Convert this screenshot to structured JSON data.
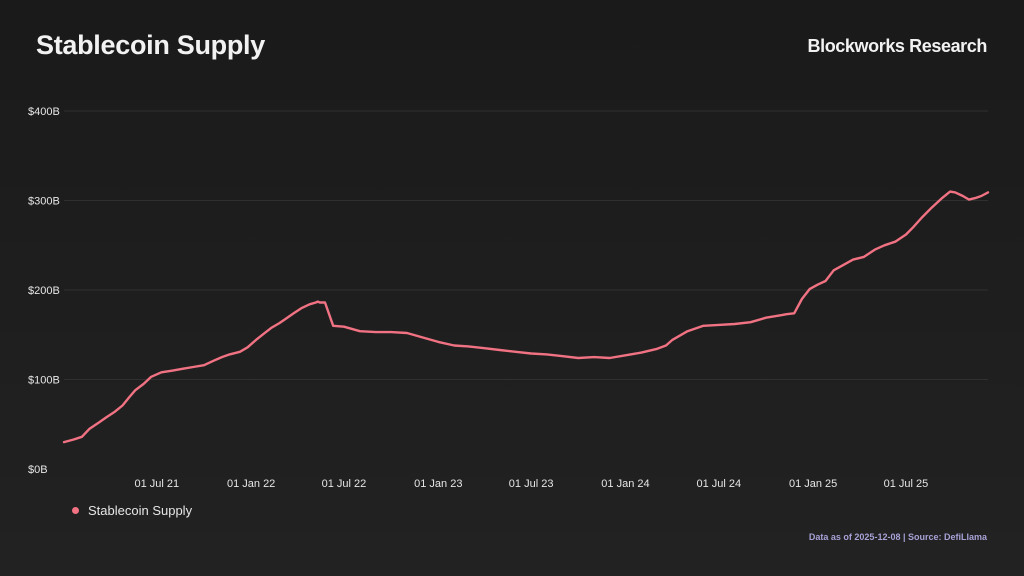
{
  "title": "Stablecoin Supply",
  "brand": "Blockworks Research",
  "source_note": "Data as of 2025-12-08 | Source: DefiLlama",
  "colors": {
    "background": "#1e1e1e",
    "grid": "#303030",
    "axis_text": "#e6e6e6",
    "series": "#f07283",
    "source_text": "#a7a1d6"
  },
  "chart_data": {
    "type": "line",
    "title": "Stablecoin Supply",
    "xlabel": "",
    "ylabel": "",
    "ylim": [
      0,
      400
    ],
    "y_unit": "B USD",
    "y_ticks": [
      0,
      100,
      200,
      300,
      400
    ],
    "y_tick_labels": [
      "$0B",
      "$100B",
      "$200B",
      "$300B",
      "$400B"
    ],
    "xlim": [
      "2021-01-01",
      "2025-12-08"
    ],
    "x_ticks": [
      "2021-07-01",
      "2022-01-01",
      "2022-07-01",
      "2023-01-01",
      "2023-07-01",
      "2024-01-01",
      "2024-07-01",
      "2025-01-01",
      "2025-07-01"
    ],
    "x_tick_labels": [
      "01 Jul 21",
      "01 Jan 22",
      "01 Jul 22",
      "01 Jan 23",
      "01 Jul 23",
      "01 Jan 24",
      "01 Jul 24",
      "01 Jan 25",
      "01 Jul 25"
    ],
    "grid": true,
    "legend_position": "bottom-left",
    "series": [
      {
        "name": "Stablecoin Supply",
        "x": [
          "2021-01-01",
          "2021-01-20",
          "2021-02-05",
          "2021-02-20",
          "2021-03-10",
          "2021-03-25",
          "2021-04-10",
          "2021-04-25",
          "2021-05-08",
          "2021-05-20",
          "2021-06-05",
          "2021-06-20",
          "2021-07-10",
          "2021-08-01",
          "2021-08-20",
          "2021-09-10",
          "2021-10-01",
          "2021-10-20",
          "2021-11-05",
          "2021-11-20",
          "2021-12-10",
          "2021-12-25",
          "2022-01-10",
          "2022-01-25",
          "2022-02-10",
          "2022-02-25",
          "2022-03-10",
          "2022-03-25",
          "2022-04-10",
          "2022-04-25",
          "2022-05-07",
          "2022-05-11",
          "2022-05-15",
          "2022-05-25",
          "2022-06-10",
          "2022-07-01",
          "2022-08-01",
          "2022-09-01",
          "2022-10-01",
          "2022-11-01",
          "2022-12-01",
          "2023-01-01",
          "2023-02-01",
          "2023-03-01",
          "2023-04-01",
          "2023-05-01",
          "2023-06-01",
          "2023-07-01",
          "2023-08-01",
          "2023-09-01",
          "2023-10-01",
          "2023-11-01",
          "2023-12-01",
          "2024-01-01",
          "2024-02-01",
          "2024-03-01",
          "2024-03-20",
          "2024-04-01",
          "2024-05-01",
          "2024-06-01",
          "2024-07-01",
          "2024-08-01",
          "2024-09-01",
          "2024-10-01",
          "2024-11-01",
          "2024-11-10",
          "2024-11-25",
          "2024-12-10",
          "2024-12-25",
          "2025-01-10",
          "2025-01-25",
          "2025-02-10",
          "2025-03-01",
          "2025-03-20",
          "2025-04-10",
          "2025-05-01",
          "2025-05-20",
          "2025-06-10",
          "2025-07-01",
          "2025-07-15",
          "2025-08-01",
          "2025-08-20",
          "2025-09-10",
          "2025-09-25",
          "2025-10-05",
          "2025-10-20",
          "2025-11-01",
          "2025-11-15",
          "2025-11-25",
          "2025-12-08"
        ],
        "values": [
          30,
          33,
          36,
          45,
          52,
          58,
          64,
          71,
          80,
          88,
          95,
          103,
          108,
          110,
          112,
          114,
          116,
          121,
          125,
          128,
          131,
          136,
          144,
          151,
          158,
          163,
          168,
          174,
          180,
          184,
          186,
          187,
          186,
          186,
          160,
          159,
          154,
          153,
          153,
          152,
          147,
          142,
          138,
          137,
          135,
          133,
          131,
          129,
          128,
          126,
          124,
          125,
          124,
          127,
          130,
          134,
          138,
          144,
          154,
          160,
          161,
          162,
          164,
          169,
          172,
          173,
          174,
          190,
          201,
          206,
          210,
          222,
          228,
          234,
          237,
          245,
          250,
          254,
          262,
          270,
          281,
          292,
          303,
          310,
          309,
          305,
          301,
          303,
          305,
          309
        ]
      }
    ]
  }
}
